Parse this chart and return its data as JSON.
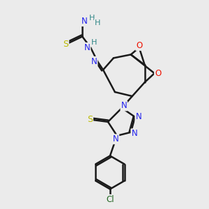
{
  "bg_color": "#ebebeb",
  "bond_color": "#1a1a1a",
  "atom_colors": {
    "O": "#ee1100",
    "N": "#2222ee",
    "S": "#bbbb00",
    "H": "#338888",
    "Cl": "#226622",
    "C": "#1a1a1a"
  },
  "figsize": [
    3.0,
    3.0
  ],
  "dpi": 100
}
